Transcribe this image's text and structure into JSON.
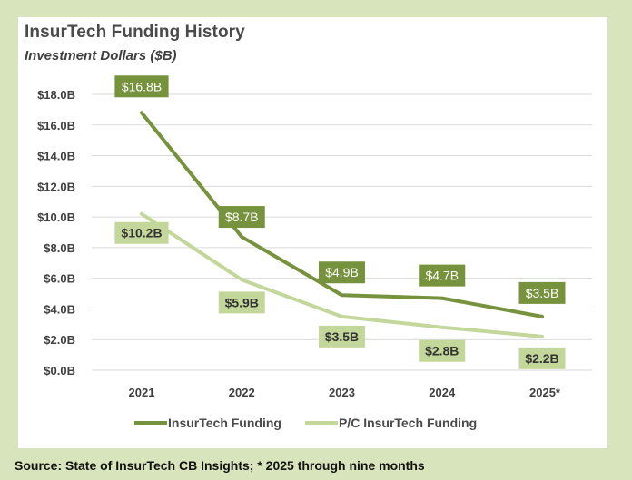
{
  "chart_data": {
    "type": "line",
    "title": "InsurTech Funding History",
    "subtitle": "Investment Dollars ($B)",
    "xlabel": "",
    "ylabel": "",
    "categories": [
      "2021",
      "2022",
      "2023",
      "2024",
      "2025*"
    ],
    "ylim": [
      0,
      18
    ],
    "yticks": [
      0,
      2,
      4,
      6,
      8,
      10,
      12,
      14,
      16,
      18
    ],
    "ytick_labels": [
      "$0.0B",
      "$2.0B",
      "$4.0B",
      "$6.0B",
      "$8.0B",
      "$10.0B",
      "$12.0B",
      "$14.0B",
      "$16.0B",
      "$18.0B"
    ],
    "grid": true,
    "legend_position": "bottom",
    "series": [
      {
        "name": "InsurTech Funding",
        "color": "#76923c",
        "label_text_color": "#ffffff",
        "values": [
          16.8,
          8.7,
          4.9,
          4.7,
          3.5
        ],
        "labels": [
          "$16.8B",
          "$8.7B",
          "$4.9B",
          "$4.7B",
          "$3.5B"
        ]
      },
      {
        "name": "P/C InsurTech Funding",
        "color": "#c4d79b",
        "label_text_color": "#333333",
        "values": [
          10.2,
          5.9,
          3.5,
          2.8,
          2.2
        ],
        "labels": [
          "$10.2B",
          "$5.9B",
          "$3.5B",
          "$2.8B",
          "$2.2B"
        ]
      }
    ]
  },
  "footer": {
    "source": "Source: State of InsurTech CB Insights; * 2025 through nine months"
  },
  "colors": {
    "background": "#d8e4bc",
    "panel": "#ffffff",
    "gridline": "#d9d9d9"
  }
}
